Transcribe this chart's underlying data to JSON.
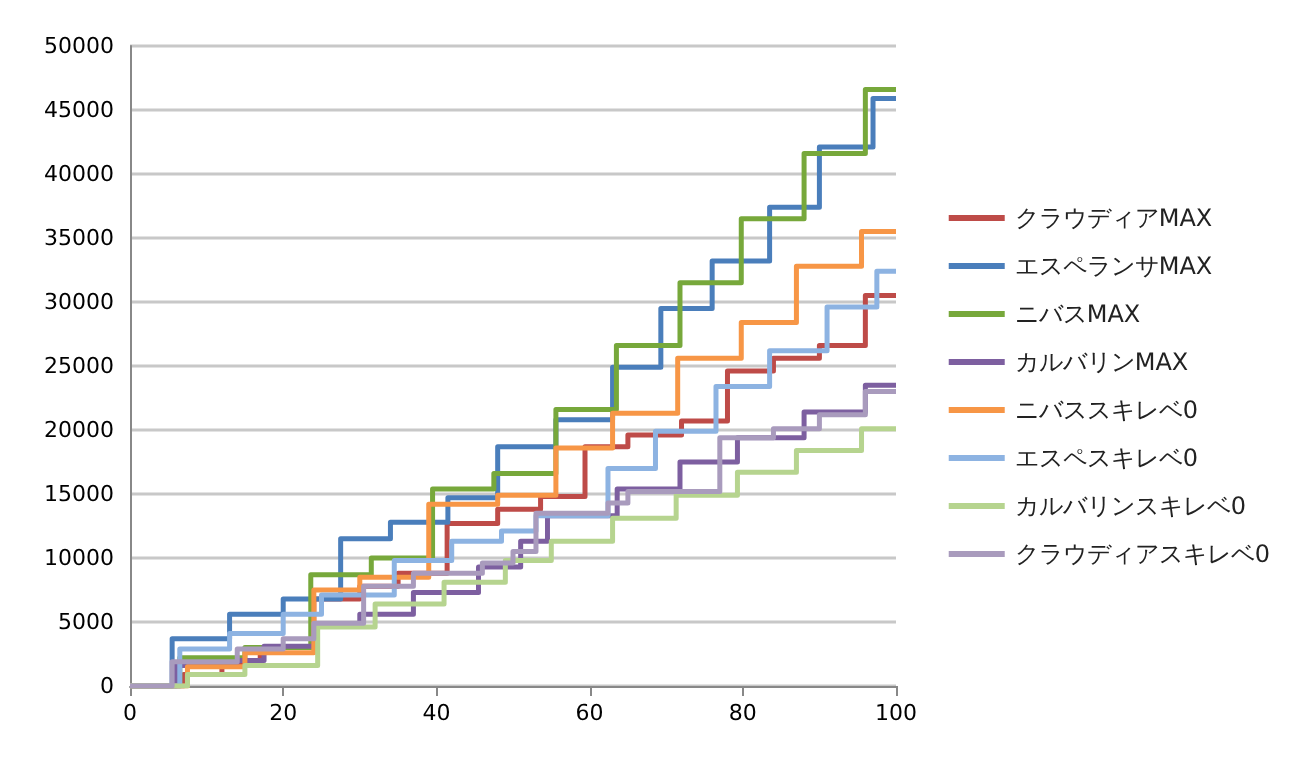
{
  "chart_data": {
    "type": "step",
    "xlim": [
      0,
      100
    ],
    "xticks": [
      0,
      20,
      40,
      60,
      80,
      100
    ],
    "ylim": [
      0,
      50000
    ],
    "yticks": [
      0,
      5000,
      10000,
      15000,
      20000,
      25000,
      30000,
      35000,
      40000,
      45000,
      50000
    ],
    "grid": "y",
    "legend": "right",
    "marker": "none",
    "series": [
      {
        "name": "クラウディアMAX",
        "color": "#be4b48",
        "x": [
          0,
          7,
          12,
          17,
          24,
          30,
          35,
          41.4,
          48,
          53.6,
          59.4,
          65,
          72,
          78,
          84,
          90,
          96,
          100
        ],
        "values": [
          0,
          900,
          1700,
          3000,
          6800,
          7800,
          8800,
          12700,
          13800,
          14800,
          18700,
          19600,
          20700,
          24600,
          25600,
          26600,
          30500,
          30500
        ]
      },
      {
        "name": "エスペランサMAX",
        "color": "#4a7ebb",
        "x": [
          0,
          5.5,
          13,
          20,
          27.5,
          34,
          41.5,
          48,
          55.6,
          63,
          69.3,
          76,
          83.5,
          90,
          97,
          100
        ],
        "values": [
          0,
          3700,
          5600,
          6800,
          11500,
          12800,
          14700,
          18700,
          20800,
          24900,
          29500,
          33200,
          37400,
          42100,
          45900,
          45900
        ]
      },
      {
        "name": "ニバスMAX",
        "color": "#77a83b",
        "x": [
          0,
          6.5,
          15,
          23.6,
          31.5,
          39.5,
          47.5,
          55.6,
          63.5,
          71.8,
          79.8,
          88,
          96,
          100
        ],
        "values": [
          0,
          2200,
          3000,
          8700,
          10000,
          15400,
          16600,
          21600,
          26600,
          31500,
          36500,
          41600,
          46600,
          46600
        ]
      },
      {
        "name": "カルバリンMAX",
        "color": "#7d5fa0",
        "x": [
          0,
          6,
          14,
          17.5,
          24,
          30,
          37,
          45.5,
          51,
          54.5,
          63.6,
          71.8,
          79.3,
          88,
          96,
          100
        ],
        "values": [
          0,
          1600,
          2000,
          3100,
          4700,
          5600,
          7300,
          9300,
          11300,
          13300,
          15400,
          17500,
          19400,
          21400,
          23500,
          23500
        ]
      },
      {
        "name": "ニバススキレベ0",
        "color": "#f79646",
        "x": [
          0,
          7.5,
          15,
          24,
          30,
          39,
          48,
          55.6,
          63,
          71.5,
          79.8,
          87,
          95.5,
          100
        ],
        "values": [
          0,
          1500,
          2600,
          7500,
          8500,
          14200,
          14900,
          18600,
          21300,
          25600,
          28400,
          32800,
          35500,
          35500
        ]
      },
      {
        "name": "エスペスキレベ0",
        "color": "#8db3e2",
        "x": [
          0,
          6.5,
          13,
          20,
          25,
          34.5,
          42,
          48.5,
          53,
          62.4,
          68.6,
          76.5,
          83.5,
          91,
          97.5,
          100
        ],
        "values": [
          0,
          2900,
          4100,
          5600,
          7100,
          9800,
          11300,
          12100,
          13300,
          17000,
          19900,
          23400,
          26200,
          29600,
          32400,
          32400
        ]
      },
      {
        "name": "カルバリンスキレベ0",
        "color": "#b6d48f",
        "x": [
          0,
          7.5,
          15,
          24.5,
          32,
          41,
          49,
          55,
          63,
          71.3,
          79.3,
          87,
          95.5,
          100
        ],
        "values": [
          0,
          900,
          1600,
          4600,
          6400,
          8100,
          9800,
          11300,
          13100,
          14900,
          16700,
          18400,
          20100,
          20100
        ]
      },
      {
        "name": "クラウディアスキレベ0",
        "color": "#a99bbd",
        "x": [
          0,
          5.5,
          14,
          20,
          24,
          30.5,
          37,
          46,
          50,
          53,
          62.4,
          65,
          77,
          84,
          90,
          96,
          100
        ],
        "values": [
          0,
          1900,
          2900,
          3700,
          4900,
          7800,
          8800,
          9600,
          10500,
          13500,
          14300,
          15200,
          19400,
          20100,
          21200,
          23000,
          23000
        ]
      }
    ]
  }
}
